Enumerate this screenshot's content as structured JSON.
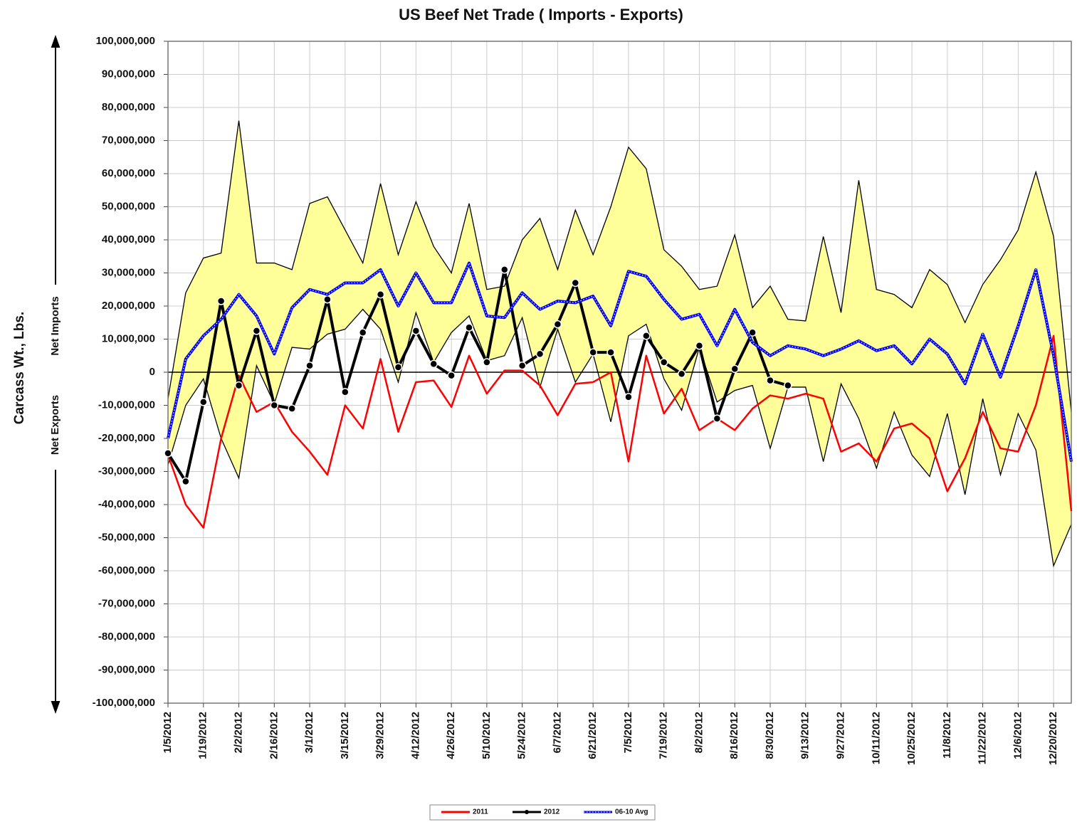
{
  "chart_data": {
    "type": "line",
    "title": "US Beef Net Trade ( Imports - Exports)",
    "y_label": "Carcass Wt., Lbs.",
    "annotations": [
      "Net Imports",
      "Net Exports"
    ],
    "categories": [
      "1/5/2012",
      null,
      "1/19/2012",
      null,
      "2/2/2012",
      null,
      "2/16/2012",
      null,
      "3/1/2012",
      null,
      "3/15/2012",
      null,
      "3/29/2012",
      null,
      "4/12/2012",
      null,
      "4/26/2012",
      null,
      "5/10/2012",
      null,
      "5/24/2012",
      null,
      "6/7/2012",
      null,
      "6/21/2012",
      null,
      "7/5/2012",
      null,
      "7/19/2012",
      null,
      "8/2/2012",
      null,
      "8/16/2012",
      null,
      "8/30/2012",
      null,
      "9/13/2012",
      null,
      "9/27/2012",
      null,
      "10/11/2012",
      null,
      "10/25/2012",
      null,
      "11/8/2012",
      null,
      "11/22/2012",
      null,
      "12/6/2012",
      null,
      "12/20/2012",
      null
    ],
    "ylim": [
      -100000000.0,
      100000000.0
    ],
    "yticks": [
      {
        "value": 100000000.0,
        "label": "100,000,000"
      },
      {
        "value": 90000000.0,
        "label": "90,000,000"
      },
      {
        "value": 80000000.0,
        "label": "80,000,000"
      },
      {
        "value": 70000000.0,
        "label": "70,000,000"
      },
      {
        "value": 60000000.0,
        "label": "60,000,000"
      },
      {
        "value": 50000000.0,
        "label": "50,000,000"
      },
      {
        "value": 40000000.0,
        "label": "40,000,000"
      },
      {
        "value": 30000000.0,
        "label": "30,000,000"
      },
      {
        "value": 20000000.0,
        "label": "20,000,000"
      },
      {
        "value": 10000000.0,
        "label": "10,000,000"
      },
      0,
      {
        "value": -10000000.0,
        "label": "-10,000,000"
      },
      {
        "value": -20000000.0,
        "label": "-20,000,000"
      },
      {
        "value": -30000000.0,
        "label": "-30,000,000"
      },
      {
        "value": -40000000.0,
        "label": "-40,000,000"
      },
      {
        "value": -50000000.0,
        "label": "-50,000,000"
      },
      {
        "value": -60000000.0,
        "label": "-60,000,000"
      },
      {
        "value": -70000000.0,
        "label": "-70,000,000"
      },
      {
        "value": -80000000.0,
        "label": "-80,000,000"
      },
      {
        "value": -90000000.0,
        "label": "-90,000,000"
      },
      {
        "value": -100000000.0,
        "label": "-100,000,000"
      }
    ],
    "grid": true,
    "legend": "bottom",
    "band": {
      "color": "#ffff99",
      "upper": [
        -8000000.0,
        24000000.0,
        34500000.0,
        36000000.0,
        76000000.0,
        33000000.0,
        33000000.0,
        31000000.0,
        51000000.0,
        53000000.0,
        43000000.0,
        33000000.0,
        57000000.0,
        35500000.0,
        51500000.0,
        38000000.0,
        30000000.0,
        51000000.0,
        25000000.0,
        26000000.0,
        40000000.0,
        46500000.0,
        31000000.0,
        49000000.0,
        35500000.0,
        50000000.0,
        68000000.0,
        61500000.0,
        37000000.0,
        32000000.0,
        25000000.0,
        26000000.0,
        41500000.0,
        19500000.0,
        26000000.0,
        16000000.0,
        15500000.0,
        41000000.0,
        18000000.0,
        58000000.0,
        25000000.0,
        23500000.0,
        19500000.0,
        31000000.0,
        26500000.0,
        15000000.0,
        26500000.0,
        34000000.0,
        43000000.0,
        60500000.0,
        41000000.0,
        -12000000.0
      ],
      "lower": [
        -28000000.0,
        -10000000.0,
        -2000000.0,
        -20000000.0,
        -32000000.0,
        2000000.0,
        -9500000.0,
        7500000.0,
        7000000.0,
        11500000.0,
        13000000.0,
        19000000.0,
        13000000.0,
        -3000000.0,
        18000000.0,
        3000000.0,
        12000000.0,
        17000000.0,
        3500000.0,
        5000000.0,
        16500000.0,
        -4500000.0,
        13000000.0,
        -3000000.0,
        5500000.0,
        -15000000.0,
        11000000.0,
        14500000.0,
        -2000000.0,
        -11500000.0,
        7500000.0,
        -9000000.0,
        -5500000.0,
        -4000000.0,
        -23000000.0,
        -4500000.0,
        -4500000.0,
        -27000000.0,
        -3500000.0,
        -14000000.0,
        -29000000.0,
        -12000000.0,
        -25000000.0,
        -31500000.0,
        -12500000.0,
        -37000000.0,
        -8000000.0,
        -31000000.0,
        -12500000.0,
        -23500000.0,
        -58500000.0,
        -46000000.0
      ]
    },
    "series": [
      {
        "name": "2011",
        "color": "#ff0000",
        "values": [
          -25000000.0,
          -40000000.0,
          -47000000.0,
          -20000000.0,
          -1000000.0,
          -12000000.0,
          -9000000.0,
          -18000000.0,
          -24000000.0,
          -31000000.0,
          -10000000.0,
          -17000000.0,
          4000000.0,
          -18000000.0,
          -3000000.0,
          -2500000.0,
          -10500000.0,
          5000000.0,
          -6500000.0,
          500000.0,
          500000.0,
          -4000000.0,
          -13000000.0,
          -3500000.0,
          -3000000.0,
          0,
          -27000000.0,
          5000000.0,
          -12500000.0,
          -5000000.0,
          -17500000.0,
          -14000000.0,
          -17500000.0,
          -11000000.0,
          -7000000.0,
          -8000000.0,
          -6500000.0,
          -8000000.0,
          -24000000.0,
          -21500000.0,
          -27000000.0,
          -17000000.0,
          -15500000.0,
          -20000000.0,
          -36000000.0,
          -26000000.0,
          -12000000.0,
          -23000000.0,
          -24000000.0,
          -10000000.0,
          11000000.0,
          -42000000.0
        ]
      },
      {
        "name": "2012",
        "color": "#000000",
        "values": [
          -24500000.0,
          -33000000.0,
          -9000000.0,
          21500000.0,
          -4000000.0,
          12500000.0,
          -10000000.0,
          -11000000.0,
          2000000.0,
          22000000.0,
          -6000000.0,
          12000000.0,
          23500000.0,
          1500000.0,
          12500000.0,
          2500000.0,
          -1000000.0,
          13500000.0,
          3000000.0,
          31000000.0,
          2000000.0,
          5500000.0,
          14500000.0,
          27000000.0,
          6000000.0,
          6000000.0,
          -7500000.0,
          11000000.0,
          3000000.0,
          -500000.0,
          8000000.0,
          -14000000.0,
          1000000.0,
          12000000.0,
          -2500000.0,
          -4000000.0,
          null,
          null,
          null,
          null,
          null,
          null,
          null,
          null,
          null,
          null,
          null,
          null,
          null,
          null,
          null,
          null
        ]
      },
      {
        "name": "06-10 Avg",
        "color": "#0000ff",
        "values": [
          -20000000.0,
          4000000.0,
          11000000.0,
          16000000.0,
          23500000.0,
          17000000.0,
          5500000.0,
          19500000.0,
          25000000.0,
          23500000.0,
          27000000.0,
          27000000.0,
          31000000.0,
          20000000.0,
          30000000.0,
          21000000.0,
          21000000.0,
          33000000.0,
          17000000.0,
          16500000.0,
          24000000.0,
          19000000.0,
          21500000.0,
          21000000.0,
          23000000.0,
          14000000.0,
          30500000.0,
          29000000.0,
          22000000.0,
          16000000.0,
          17500000.0,
          8000000.0,
          19000000.0,
          9000000.0,
          5000000.0,
          8000000.0,
          7000000.0,
          5000000.0,
          7000000.0,
          9500000.0,
          6500000.0,
          8000000.0,
          2500000.0,
          10000000.0,
          5500000.0,
          -3500000.0,
          11500000.0,
          -1500000.0,
          14000000.0,
          31000000.0,
          5000000.0,
          -27000000.0
        ]
      }
    ]
  }
}
